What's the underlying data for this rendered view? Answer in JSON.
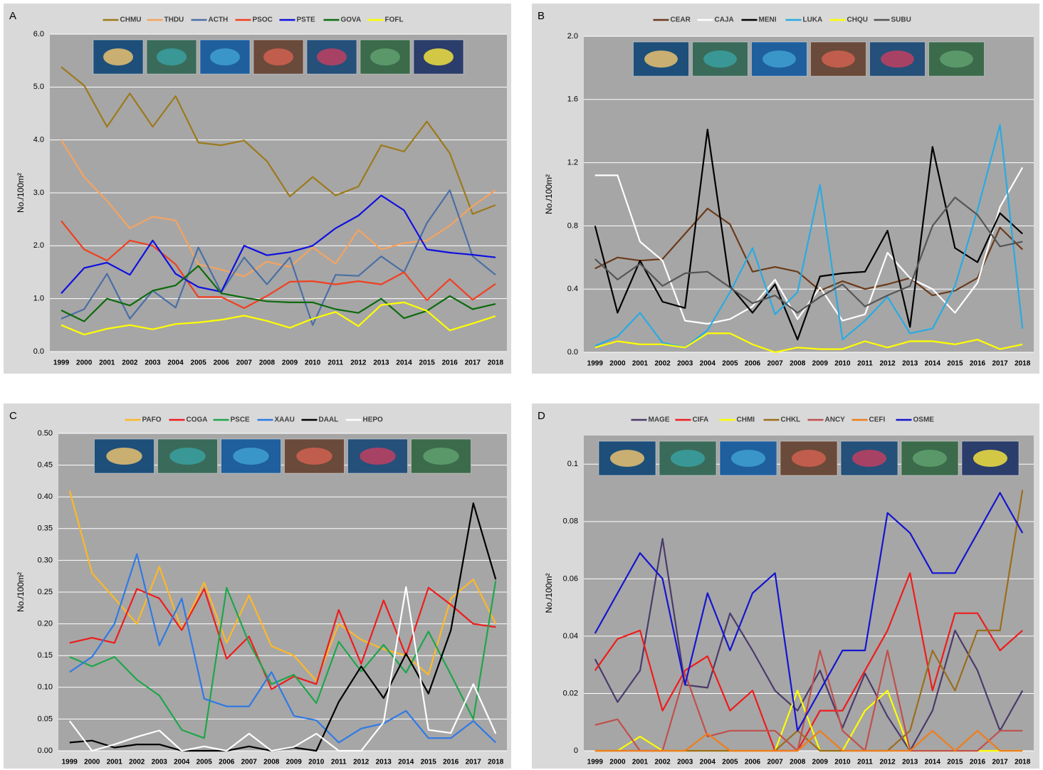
{
  "chart_data": [
    {
      "type": "line",
      "panel": "A",
      "y_label": "No./100m²",
      "grid": true,
      "categories": [
        "1999",
        "2000",
        "2001",
        "2002",
        "2003",
        "2004",
        "2005",
        "2006",
        "2007",
        "2008",
        "2009",
        "2010",
        "2011",
        "2012",
        "2013",
        "2014",
        "2015",
        "2016",
        "2017",
        "2018"
      ],
      "ylim": [
        0,
        6
      ],
      "yticks": [
        {
          "value": 0,
          "label": "0.0"
        },
        {
          "value": 1,
          "label": "1.0"
        },
        {
          "value": 2,
          "label": "2.0"
        },
        {
          "value": 3,
          "label": "3.0"
        },
        {
          "value": 4,
          "label": "4.0"
        },
        {
          "value": 5,
          "label": "5.0"
        },
        {
          "value": 6,
          "label": "6.0"
        }
      ],
      "series": [
        {
          "name": "CHMU",
          "color": "#9c7a1c",
          "values": [
            5.38,
            5.03,
            4.25,
            4.88,
            4.25,
            4.83,
            3.95,
            3.9,
            3.99,
            3.6,
            2.93,
            3.3,
            2.95,
            3.12,
            3.9,
            3.78,
            4.35,
            3.75,
            2.6,
            2.77
          ]
        },
        {
          "name": "THDU",
          "color": "#f4a460",
          "values": [
            4.0,
            3.3,
            2.85,
            2.33,
            2.55,
            2.48,
            1.65,
            1.55,
            1.42,
            1.7,
            1.6,
            1.97,
            1.66,
            2.3,
            1.93,
            2.05,
            2.1,
            2.38,
            2.75,
            3.05
          ]
        },
        {
          "name": "ACTH",
          "color": "#4a6fa5",
          "values": [
            0.62,
            0.8,
            1.47,
            0.62,
            1.15,
            0.83,
            1.97,
            1.12,
            1.78,
            1.27,
            1.78,
            0.5,
            1.45,
            1.43,
            1.8,
            1.5,
            2.43,
            3.05,
            1.8,
            1.45
          ]
        },
        {
          "name": "PSOC",
          "color": "#f04020",
          "values": [
            2.47,
            1.93,
            1.72,
            2.1,
            2.0,
            1.65,
            1.03,
            1.03,
            0.82,
            1.05,
            1.32,
            1.33,
            1.27,
            1.33,
            1.27,
            1.5,
            0.97,
            1.37,
            0.98,
            1.28
          ]
        },
        {
          "name": "PSTE",
          "color": "#1010e0",
          "values": [
            1.1,
            1.58,
            1.68,
            1.45,
            2.1,
            1.47,
            1.22,
            1.13,
            2.0,
            1.82,
            1.88,
            2.0,
            2.33,
            2.57,
            2.95,
            2.67,
            1.93,
            1.87,
            1.83,
            1.78
          ]
        },
        {
          "name": "GOVA",
          "color": "#0d6b0d",
          "values": [
            0.78,
            0.57,
            1.0,
            0.87,
            1.15,
            1.25,
            1.62,
            1.1,
            1.02,
            0.95,
            0.93,
            0.93,
            0.8,
            0.73,
            1.0,
            0.63,
            0.77,
            1.05,
            0.8,
            0.9
          ]
        },
        {
          "name": "FOFL",
          "color": "#ffff00",
          "values": [
            0.5,
            0.32,
            0.43,
            0.5,
            0.42,
            0.52,
            0.55,
            0.6,
            0.68,
            0.58,
            0.45,
            0.62,
            0.75,
            0.48,
            0.88,
            0.93,
            0.77,
            0.4,
            0.53,
            0.67
          ]
        }
      ]
    },
    {
      "type": "line",
      "panel": "B",
      "y_label": "No./100m²",
      "grid": true,
      "categories": [
        "1999",
        "2000",
        "2001",
        "2002",
        "2003",
        "2004",
        "2005",
        "2006",
        "2007",
        "2008",
        "2009",
        "2010",
        "2011",
        "2012",
        "2013",
        "2014",
        "2015",
        "2016",
        "2017",
        "2018"
      ],
      "ylim": [
        0,
        2
      ],
      "yticks": [
        {
          "value": 0,
          "label": "0.0"
        },
        {
          "value": 0.4,
          "label": "0.4"
        },
        {
          "value": 0.8,
          "label": "0.8"
        },
        {
          "value": 1.2,
          "label": "1.2"
        },
        {
          "value": 1.6,
          "label": "1.6"
        },
        {
          "value": 2,
          "label": "2.0"
        }
      ],
      "series": [
        {
          "name": "CEAR",
          "color": "#6b3a1a",
          "values": [
            0.53,
            0.6,
            0.58,
            0.59,
            0.75,
            0.91,
            0.81,
            0.51,
            0.54,
            0.51,
            0.39,
            0.45,
            0.4,
            0.43,
            0.47,
            0.36,
            0.39,
            0.47,
            0.79,
            0.65
          ]
        },
        {
          "name": "CAJA",
          "color": "#ffffff",
          "values": [
            1.12,
            1.12,
            0.7,
            0.58,
            0.2,
            0.18,
            0.21,
            0.29,
            0.46,
            0.21,
            0.41,
            0.2,
            0.24,
            0.63,
            0.47,
            0.4,
            0.25,
            0.44,
            0.92,
            1.17
          ]
        },
        {
          "name": "MENI",
          "color": "#000000",
          "values": [
            0.8,
            0.25,
            0.58,
            0.32,
            0.28,
            1.41,
            0.42,
            0.25,
            0.43,
            0.08,
            0.48,
            0.5,
            0.51,
            0.77,
            0.16,
            1.3,
            0.66,
            0.57,
            0.88,
            0.75
          ]
        },
        {
          "name": "LUKA",
          "color": "#29abe2",
          "values": [
            0.04,
            0.1,
            0.25,
            0.06,
            0.03,
            0.14,
            0.38,
            0.66,
            0.24,
            0.38,
            1.06,
            0.08,
            0.2,
            0.35,
            0.12,
            0.15,
            0.42,
            0.9,
            1.44,
            0.15
          ]
        },
        {
          "name": "CHQU",
          "color": "#ffff00",
          "values": [
            0.03,
            0.07,
            0.05,
            0.05,
            0.03,
            0.12,
            0.12,
            0.05,
            0.0,
            0.03,
            0.02,
            0.02,
            0.07,
            0.03,
            0.07,
            0.07,
            0.05,
            0.08,
            0.02,
            0.05
          ]
        },
        {
          "name": "SUBU",
          "color": "#555555",
          "values": [
            0.59,
            0.46,
            0.56,
            0.42,
            0.5,
            0.51,
            0.41,
            0.31,
            0.36,
            0.25,
            0.35,
            0.43,
            0.29,
            0.36,
            0.42,
            0.8,
            0.98,
            0.87,
            0.67,
            0.7
          ]
        }
      ]
    },
    {
      "type": "line",
      "panel": "C",
      "y_label": "No./100m²",
      "grid": true,
      "categories": [
        "1999",
        "2000",
        "2001",
        "2002",
        "2003",
        "2004",
        "2005",
        "2006",
        "2007",
        "2008",
        "2009",
        "2010",
        "2011",
        "2012",
        "2013",
        "2014",
        "2015",
        "2016",
        "2017",
        "2018"
      ],
      "ylim": [
        0,
        0.5
      ],
      "yticks": [
        {
          "value": 0,
          "label": "0.00"
        },
        {
          "value": 0.05,
          "label": "0.05"
        },
        {
          "value": 0.1,
          "label": "0.10"
        },
        {
          "value": 0.15,
          "label": "0.15"
        },
        {
          "value": 0.2,
          "label": "0.20"
        },
        {
          "value": 0.25,
          "label": "0.25"
        },
        {
          "value": 0.3,
          "label": "0.30"
        },
        {
          "value": 0.35,
          "label": "0.35"
        },
        {
          "value": 0.4,
          "label": "0.40"
        },
        {
          "value": 0.45,
          "label": "0.45"
        },
        {
          "value": 0.5,
          "label": "0.50"
        }
      ],
      "series": [
        {
          "name": "PAFO",
          "color": "#fdb827",
          "values": [
            0.41,
            0.28,
            0.24,
            0.2,
            0.29,
            0.19,
            0.265,
            0.17,
            0.245,
            0.165,
            0.15,
            0.11,
            0.2,
            0.175,
            0.16,
            0.15,
            0.12,
            0.24,
            0.27,
            0.2
          ]
        },
        {
          "name": "COGA",
          "color": "#ee1c1c",
          "values": [
            0.17,
            0.178,
            0.17,
            0.255,
            0.24,
            0.19,
            0.255,
            0.145,
            0.18,
            0.097,
            0.117,
            0.105,
            0.222,
            0.137,
            0.237,
            0.15,
            0.257,
            0.23,
            0.2,
            0.195
          ]
        },
        {
          "name": "PSCE",
          "color": "#1ea64a",
          "values": [
            0.148,
            0.133,
            0.148,
            0.112,
            0.087,
            0.033,
            0.02,
            0.257,
            0.17,
            0.105,
            0.12,
            0.075,
            0.172,
            0.125,
            0.167,
            0.123,
            0.188,
            0.12,
            0.05,
            0.268
          ]
        },
        {
          "name": "XAAU",
          "color": "#2f7ae5",
          "values": [
            0.124,
            0.148,
            0.2,
            0.31,
            0.166,
            0.24,
            0.082,
            0.07,
            0.07,
            0.124,
            0.055,
            0.048,
            0.013,
            0.035,
            0.043,
            0.063,
            0.02,
            0.02,
            0.047,
            0.013
          ]
        },
        {
          "name": "DAAL",
          "color": "#000000",
          "values": [
            0.013,
            0.016,
            0.005,
            0.01,
            0.01,
            0,
            0,
            0,
            0.007,
            0,
            0.005,
            0,
            0.077,
            0.133,
            0.083,
            0.153,
            0.09,
            0.19,
            0.39,
            0.27
          ]
        },
        {
          "name": "HEPO",
          "color": "#ffffff",
          "values": [
            0.047,
            0,
            0.01,
            0.022,
            0.032,
            0,
            0.007,
            0,
            0.027,
            0,
            0.006,
            0.027,
            0,
            0,
            0.045,
            0.258,
            0.033,
            0.028,
            0.105,
            0.027
          ]
        }
      ]
    },
    {
      "type": "line",
      "panel": "D",
      "y_label": "No./100m²",
      "grid": true,
      "categories": [
        "1999",
        "2000",
        "2001",
        "2002",
        "2003",
        "2004",
        "2005",
        "2006",
        "2007",
        "2008",
        "2009",
        "2010",
        "2011",
        "2012",
        "2013",
        "2014",
        "2015",
        "2016",
        "2017",
        "2018"
      ],
      "ylim": [
        0,
        0.11
      ],
      "yticks": [
        0,
        0.02,
        0.04,
        0.06,
        0.08,
        0.1
      ],
      "series": [
        {
          "name": "MAGE",
          "color": "#4b3b6b",
          "values": [
            0.032,
            0.017,
            0.028,
            0.074,
            0.023,
            0.022,
            0.048,
            0.035,
            0.021,
            0.014,
            0.028,
            0.008,
            0.027,
            0.012,
            0,
            0.014,
            0.042,
            0.028,
            0.007,
            0.021
          ]
        },
        {
          "name": "CIFA",
          "color": "#ee1c1c",
          "values": [
            0.028,
            0.039,
            0.042,
            0.014,
            0.028,
            0.033,
            0.014,
            0.021,
            0,
            0,
            0.014,
            0.014,
            0.028,
            0.042,
            0.062,
            0.021,
            0.048,
            0.048,
            0.035,
            0.042
          ]
        },
        {
          "name": "CHMI",
          "color": "#ffff00",
          "values": [
            0,
            0,
            0.005,
            0,
            0,
            0,
            0,
            0,
            0,
            0.021,
            0,
            0,
            0.014,
            0.021,
            0,
            0,
            0,
            0,
            0,
            0
          ]
        },
        {
          "name": "CHKL",
          "color": "#9c6d1c",
          "values": [
            0,
            0,
            0,
            0,
            0,
            0,
            0,
            0,
            0,
            0.007,
            0,
            0,
            0,
            0,
            0.007,
            0.035,
            0.021,
            0.042,
            0.042,
            0.091
          ]
        },
        {
          "name": "ANCY",
          "color": "#c0504d",
          "values": [
            0.009,
            0.011,
            0,
            0,
            0.027,
            0.005,
            0.007,
            0.007,
            0.007,
            0,
            0.035,
            0.007,
            0,
            0.035,
            0,
            0,
            0,
            0,
            0.007,
            0.007
          ]
        },
        {
          "name": "CEFI",
          "color": "#f07d1a",
          "values": [
            0,
            0,
            0,
            0,
            0,
            0.006,
            0,
            0,
            0,
            0,
            0.007,
            0,
            0,
            0,
            0,
            0.007,
            0,
            0.007,
            0,
            0
          ]
        },
        {
          "name": "OSME",
          "color": "#1515d0",
          "values": [
            0.041,
            0.055,
            0.069,
            0.06,
            0.023,
            0.055,
            0.035,
            0.055,
            0.062,
            0.007,
            0.021,
            0.035,
            0.035,
            0.083,
            0.076,
            0.062,
            0.062,
            0.076,
            0.09,
            0.076
          ]
        }
      ]
    }
  ]
}
